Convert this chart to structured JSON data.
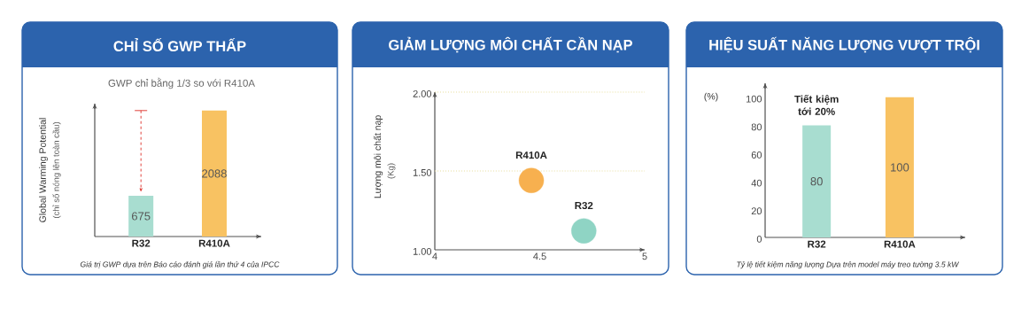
{
  "chart_data": [
    {
      "type": "bar",
      "title": "CHỈ SỐ GWP THẤP",
      "subtitle": "GWP chỉ bằng 1/3 so với  R410A",
      "ylabel": "Global Warming Potential",
      "categories": [
        "R32",
        "R410A"
      ],
      "values": [
        675,
        2088
      ],
      "colors": [
        "#a8ddd0",
        "#f8c262"
      ],
      "data_labels": true,
      "tick_labels": "x",
      "annotations": [
        "(chỉ số nóng lên toàn cầu)",
        "Giá trị GWP dựa trên Báo cáo đánh giá lần thứ 4 của IPCC"
      ]
    },
    {
      "type": "scatter",
      "title": "GIẢM LƯỢNG MÔI CHẤT CẦN NẠP",
      "ylabel": "Lượng môi chất nạp",
      "series": [
        {
          "name": "R410A",
          "color": "#f7b04f",
          "x": [
            4.46
          ],
          "values": [
            1.44
          ]
        },
        {
          "name": "R32",
          "color": "#8fd4c4",
          "x": [
            4.71
          ],
          "values": [
            1.12
          ]
        }
      ],
      "xlim": [
        4,
        5
      ],
      "ylim": [
        1,
        2
      ],
      "xticks": [
        4,
        4.5,
        5
      ],
      "yticks": [
        {
          "value": 1,
          "label": "1.00"
        },
        {
          "value": 1.5,
          "label": "1.50"
        },
        {
          "value": 2,
          "label": "2.00"
        }
      ],
      "ref_lines": [
        {
          "axis": "y",
          "value": 1.5,
          "color": "#e6dc9a",
          "line_style": "dotted"
        },
        {
          "axis": "y",
          "value": 2,
          "color": "#e6dc9a",
          "line_style": "dotted"
        }
      ],
      "annotations": [
        "(Kg)"
      ]
    },
    {
      "type": "bar",
      "title": "HIỆU SUẤT NĂNG LƯỢNG VƯỢT TRỘI",
      "ylabel": "(%)",
      "categories": [
        "R32",
        "R410A"
      ],
      "values": [
        80,
        100
      ],
      "colors": [
        "#a8ddd0",
        "#f8c262"
      ],
      "data_labels": true,
      "ylim": [
        0,
        110
      ],
      "yticks": [
        0,
        20,
        40,
        60,
        80,
        100
      ],
      "annotations": [
        "Tiết kiệm tới 20%",
        "Tỷ lệ tiết kiệm năng lượng Dựa trên model máy treo tường  3.5 kW"
      ]
    }
  ]
}
